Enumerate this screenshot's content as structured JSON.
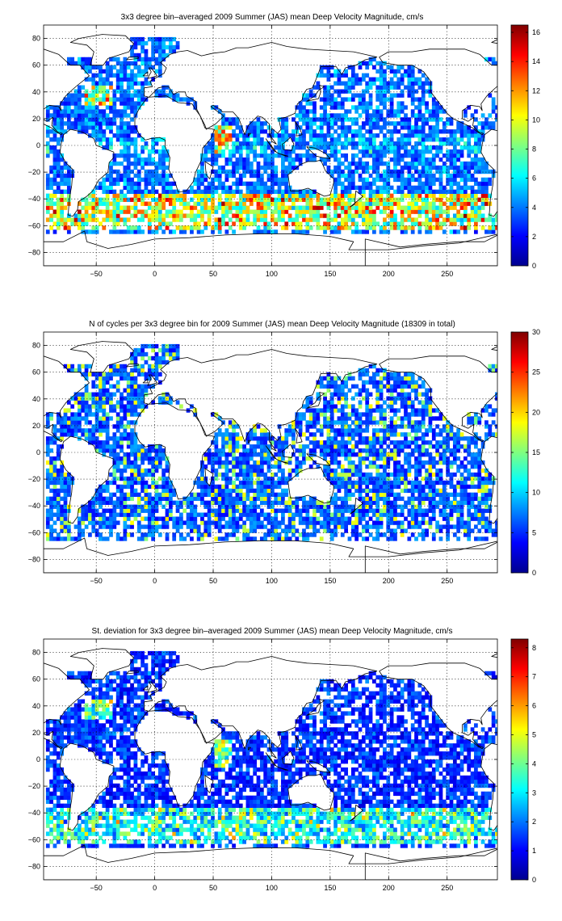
{
  "panels": [
    {
      "title": "3x3 degree bin–averaged 2009 Summer (JAS) mean Deep Velocity Magnitude, cm/s",
      "colorbar": {
        "min": 0,
        "max": 16.5,
        "ticks": [
          0,
          2,
          4,
          6,
          8,
          10,
          12,
          14,
          16
        ]
      },
      "field_scale": 1.0
    },
    {
      "title": "N of cycles per 3x3 degree bin for 2009 Summer (JAS) mean Deep Velocity Magnitude (18309 in total)",
      "colorbar": {
        "min": 0,
        "max": 30,
        "ticks": [
          0,
          5,
          10,
          15,
          20,
          25,
          30
        ]
      },
      "field_scale": 1.0
    },
    {
      "title": "St. deviation for 3x3 degree bin–averaged 2009 Summer (JAS) mean Deep Velocity Magnitude, cm/s",
      "colorbar": {
        "min": 0,
        "max": 8.3,
        "ticks": [
          0,
          1,
          2,
          3,
          4,
          5,
          6,
          7,
          8
        ]
      },
      "field_scale": 1.0
    }
  ],
  "map_axes": {
    "lon_range": [
      -95,
      293
    ],
    "lat_range": [
      -90,
      90
    ],
    "lon_ticks": [
      -50,
      0,
      50,
      100,
      150,
      200,
      250
    ],
    "lat_ticks": [
      -80,
      -60,
      -40,
      -20,
      0,
      20,
      40,
      60,
      80
    ],
    "bin_size_deg": 3,
    "grid": "dotted"
  },
  "colormap": "jet"
}
